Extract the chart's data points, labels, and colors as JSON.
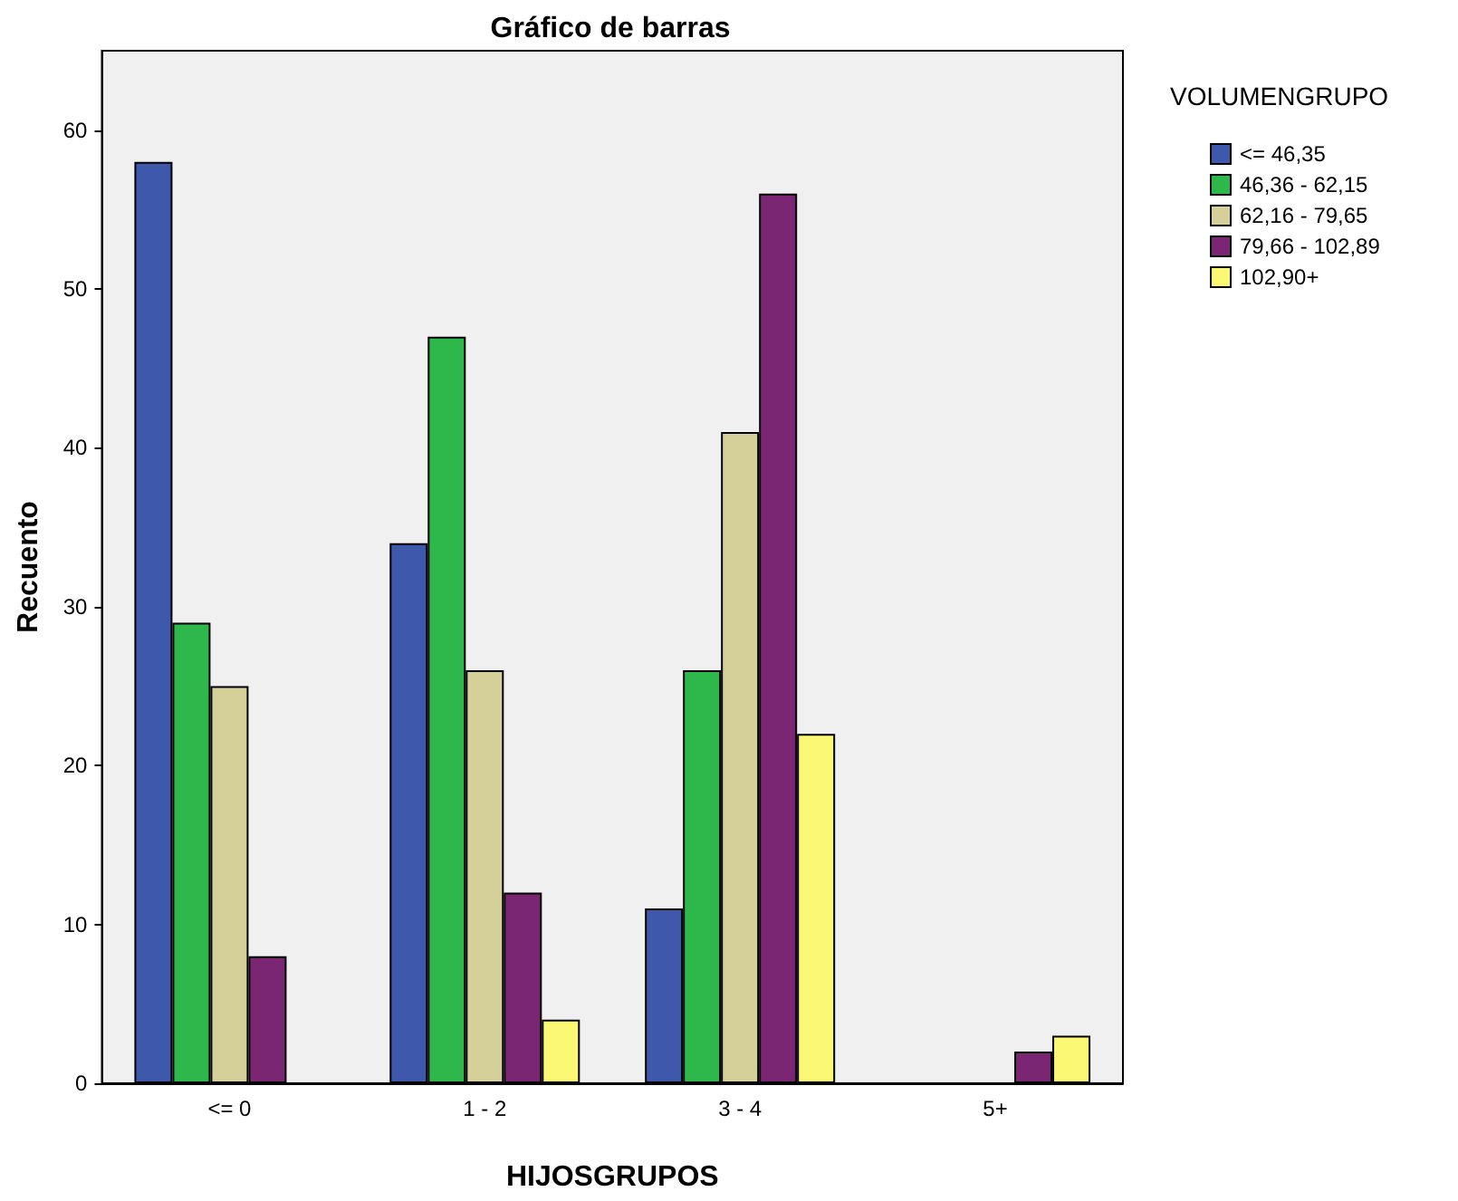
{
  "chart_data": {
    "type": "bar",
    "title": "Gráfico de barras",
    "xlabel": "HIJOSGRUPOS",
    "ylabel": "Recuento",
    "legend_title": "VOLUMENGRUPO",
    "categories": [
      "<= 0",
      "1 - 2",
      "3 - 4",
      "5+"
    ],
    "series": [
      {
        "name": "<= 46,35",
        "color": "#3e58ac",
        "values": [
          58,
          34,
          11,
          null
        ]
      },
      {
        "name": "46,36 - 62,15",
        "color": "#2eb84c",
        "values": [
          29,
          47,
          26,
          null
        ]
      },
      {
        "name": "62,16 - 79,65",
        "color": "#d5cf99",
        "values": [
          25,
          26,
          41,
          null
        ]
      },
      {
        "name": "79,66 - 102,89",
        "color": "#7b2673",
        "values": [
          8,
          12,
          56,
          2
        ]
      },
      {
        "name": "102,90+",
        "color": "#fbf873",
        "values": [
          null,
          4,
          22,
          3
        ]
      }
    ],
    "ylim": [
      0,
      65
    ],
    "yticks": [
      0,
      10,
      20,
      30,
      40,
      50,
      60
    ],
    "grid": false,
    "legend": "top right"
  }
}
